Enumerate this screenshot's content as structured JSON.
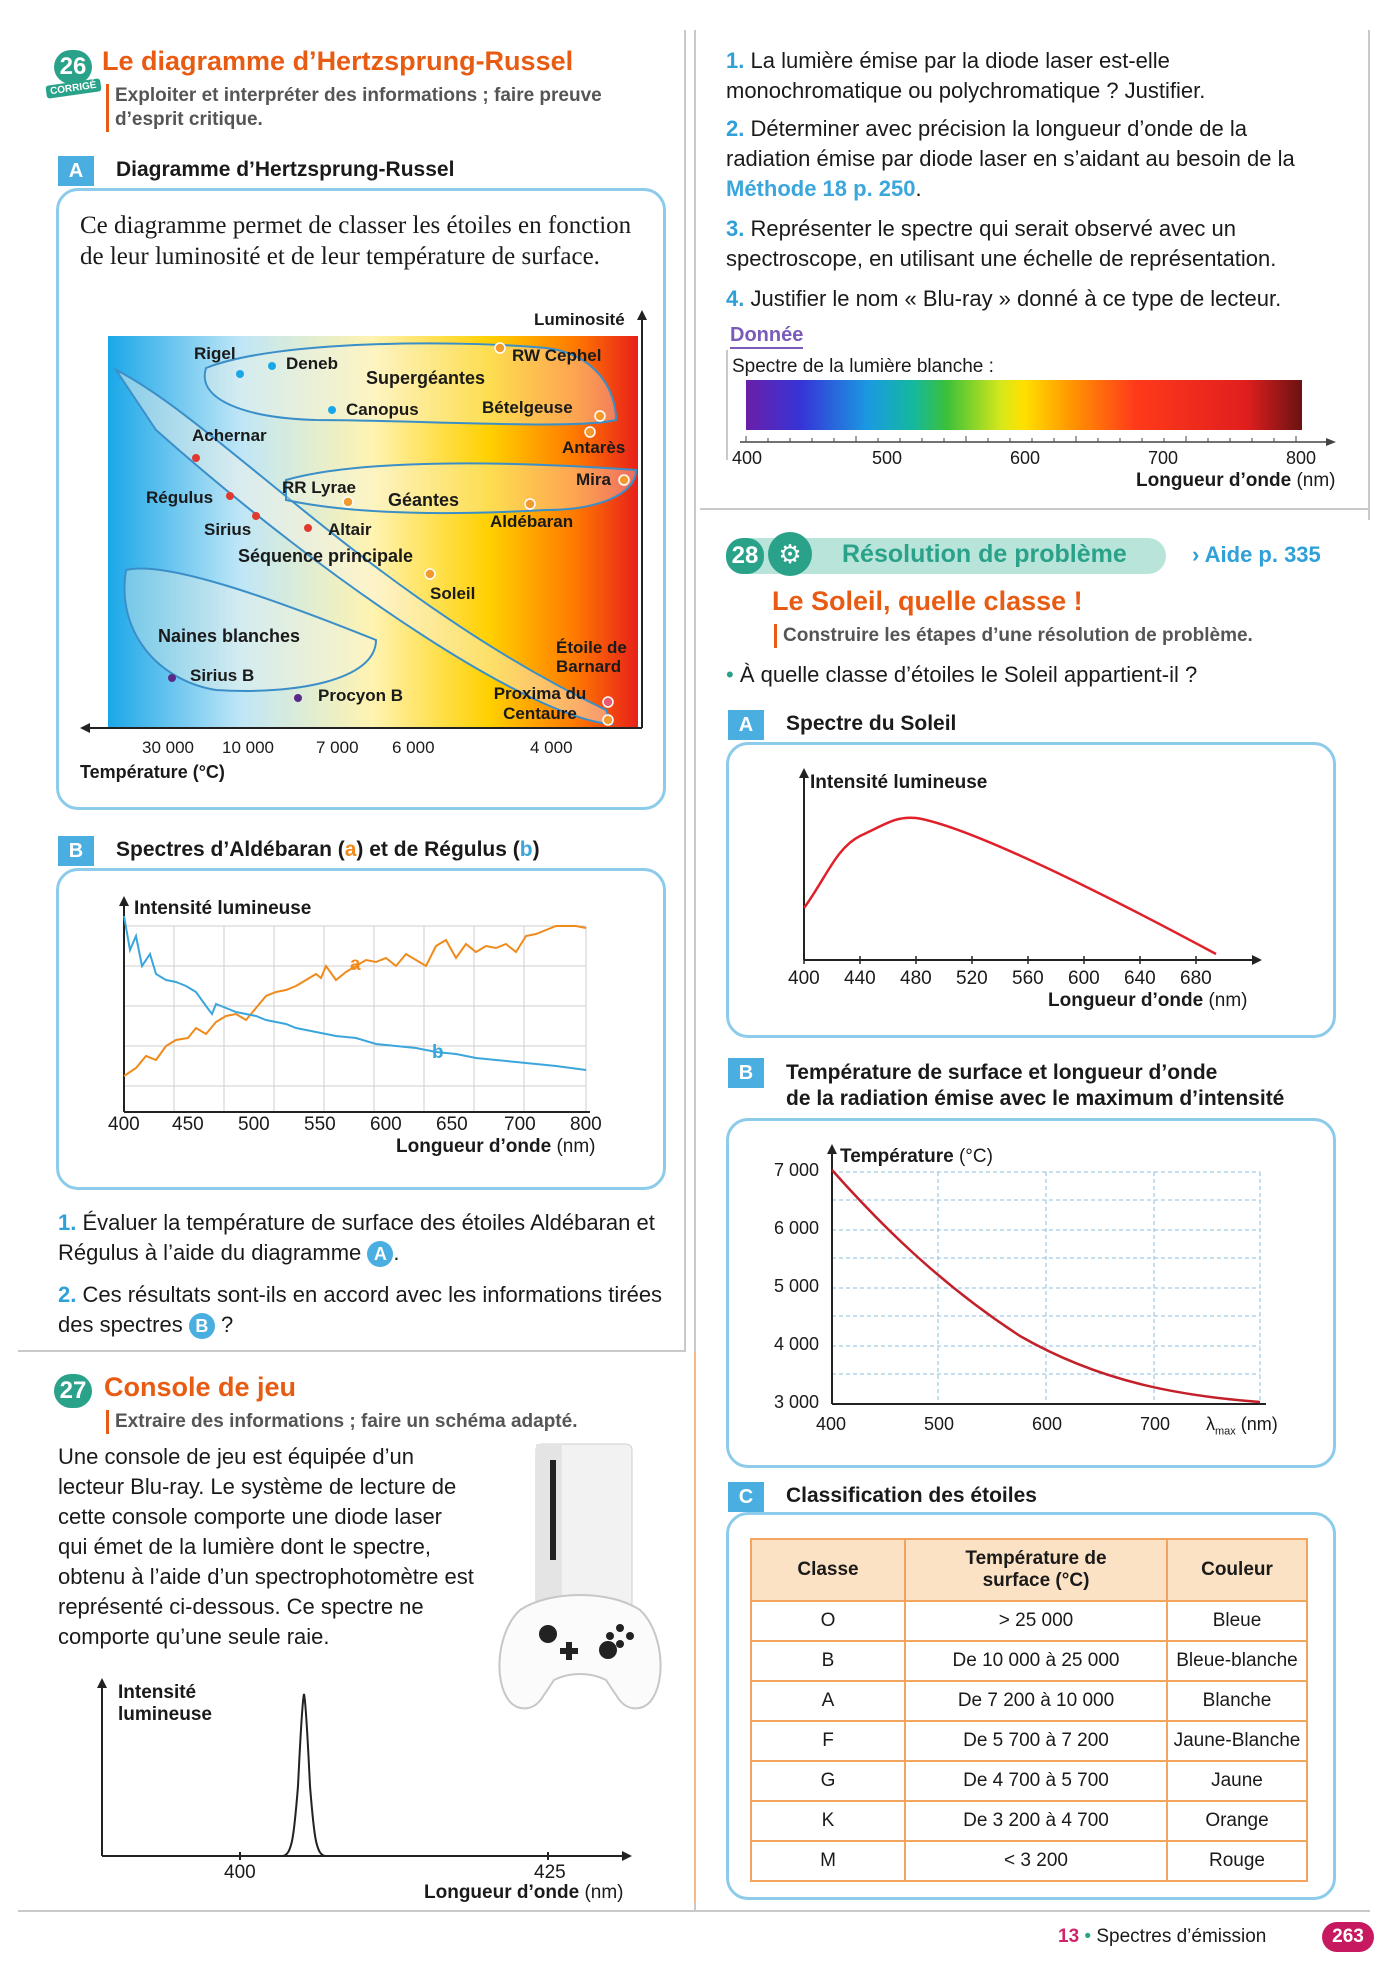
{
  "ex26": {
    "number": "26",
    "corrige": "CORRIGÉ",
    "title": "Le diagramme d’Hertzsprung-Russel",
    "skill": "Exploiter et interpréter des informations ; faire preuve d’esprit critique.",
    "docA": {
      "tab": "A",
      "title": "Diagramme d’Hertzsprung-Russel",
      "intro": "Ce diagramme permet de classer les étoiles en fonction de leur luminosité et de leur température de surface.",
      "y_label": "Luminosité",
      "x_label": "Température (°C)",
      "x_ticks": [
        "30 000",
        "10 000",
        "7 000",
        "6 000",
        "4 000"
      ],
      "groups": [
        "Supergéantes",
        "Géantes",
        "Séquence principale",
        "Naines blanches"
      ],
      "stars": [
        "Rigel",
        "Deneb",
        "RW Cephel",
        "Canopus",
        "Bételgeuse",
        "Antarès",
        "Achernar",
        "Mira",
        "RR Lyrae",
        "Régulus",
        "Sirius",
        "Altair",
        "Aldébaran",
        "Soleil",
        "Étoile de Barnard",
        "Sirius B",
        "Procyon B",
        "Proxima du Centaure"
      ]
    },
    "docB": {
      "tab": "B",
      "title_pre": "Spectres d’Aldébaran (",
      "title_a": "a",
      "title_mid": ") et de Régulus (",
      "title_b": "b",
      "title_post": ")",
      "y_label": "Intensité lumineuse",
      "x_label": "Longueur d’onde",
      "x_unit": "(nm)",
      "x_ticks": [
        "400",
        "450",
        "500",
        "550",
        "600",
        "650",
        "700",
        "800"
      ],
      "series_a": "a",
      "series_b": "b"
    },
    "questions": [
      {
        "n": "1.",
        "text": "Évaluer la température de surface des étoiles Aldébaran et Régulus à l’aide du diagramme",
        "ref": "A",
        "end": "."
      },
      {
        "n": "2.",
        "text": "Ces résultats sont-ils en accord avec les informations tirées des spectres",
        "ref": "B",
        "end": " ?"
      }
    ]
  },
  "ex27": {
    "number": "27",
    "title": "Console de jeu",
    "skill": "Extraire des informations ; faire un schéma adapté.",
    "text": "Une console de jeu est équipée d’un lecteur Blu-ray. Le système de lecture de cette console comporte une diode laser qui émet de la lumière dont le spectre, obtenu à l’aide d’un spectrophotomètre est représenté ci-dessous. Ce spectre ne comporte qu’une seule raie.",
    "graph": {
      "y_label_1": "Intensité",
      "y_label_2": "lumineuse",
      "x_ticks": [
        "400",
        "425"
      ],
      "x_label": "Longueur d’onde",
      "x_unit": "(nm)"
    },
    "questions": [
      {
        "n": "1.",
        "text": "La lumière émise par la diode laser est-elle monochromatique ou polychromatique ? Justifier."
      },
      {
        "n": "2.",
        "text": "Déterminer avec précision la longueur d’onde de la radiation émise par diode laser en s’aidant au besoin de la",
        "link": "Méthode 18 p. 250",
        "end": "."
      },
      {
        "n": "3.",
        "text": "Représenter le spectre qui serait observé avec un spectroscope, en utilisant une échelle de représentation."
      },
      {
        "n": "4.",
        "text": "Justifier le nom « Blu-ray » donné à ce type de lecteur."
      }
    ],
    "donnee": {
      "title": "Donnée",
      "caption": "Spectre de la lumière blanche :",
      "x_ticks": [
        "400",
        "500",
        "600",
        "700",
        "800"
      ],
      "x_label": "Longueur d’onde",
      "x_unit": "(nm)"
    }
  },
  "ex28": {
    "number": "28",
    "banner": "Résolution de problème",
    "aide": "Aide p. 335",
    "title": "Le Soleil, quelle classe !",
    "skill": "Construire les étapes d’une résolution de problème.",
    "question": "À quelle classe d’étoiles le Soleil appartient-il ?",
    "docA": {
      "tab": "A",
      "title": "Spectre du Soleil",
      "y_label": "Intensité lumineuse",
      "x_ticks": [
        "400",
        "440",
        "480",
        "520",
        "560",
        "600",
        "640",
        "680"
      ],
      "x_label": "Longueur d’onde",
      "x_unit": "(nm)"
    },
    "docB": {
      "tab": "B",
      "title_1": "Température de surface et longueur d’onde",
      "title_2": "de la radiation émise avec le maximum d’intensité",
      "y_label": "Température",
      "y_unit": "(°C)",
      "y_ticks": [
        "7 000",
        "6 000",
        "5 000",
        "4 000",
        "3 000"
      ],
      "x_ticks": [
        "400",
        "500",
        "600",
        "700"
      ],
      "x_label": "λ",
      "x_sub": "max",
      "x_unit": "(nm)"
    },
    "docC": {
      "tab": "C",
      "title": "Classification des étoiles",
      "headers": [
        "Classe",
        "Température de surface (°C)",
        "Couleur"
      ],
      "rows": [
        [
          "O",
          "> 25 000",
          "Bleue"
        ],
        [
          "B",
          "De 10 000 à 25 000",
          "Bleue-blanche"
        ],
        [
          "A",
          "De 7 200 à 10 000",
          "Blanche"
        ],
        [
          "F",
          "De 5 700 à 7 200",
          "Jaune-Blanche"
        ],
        [
          "G",
          "De 4 700 à 5 700",
          "Jaune"
        ],
        [
          "K",
          "De 3 200 à 4 700",
          "Orange"
        ],
        [
          "M",
          "< 3 200",
          "Rouge"
        ]
      ]
    }
  },
  "footer": {
    "chapter": "13",
    "dot": "•",
    "title": "Spectres d’émission",
    "page": "263"
  }
}
